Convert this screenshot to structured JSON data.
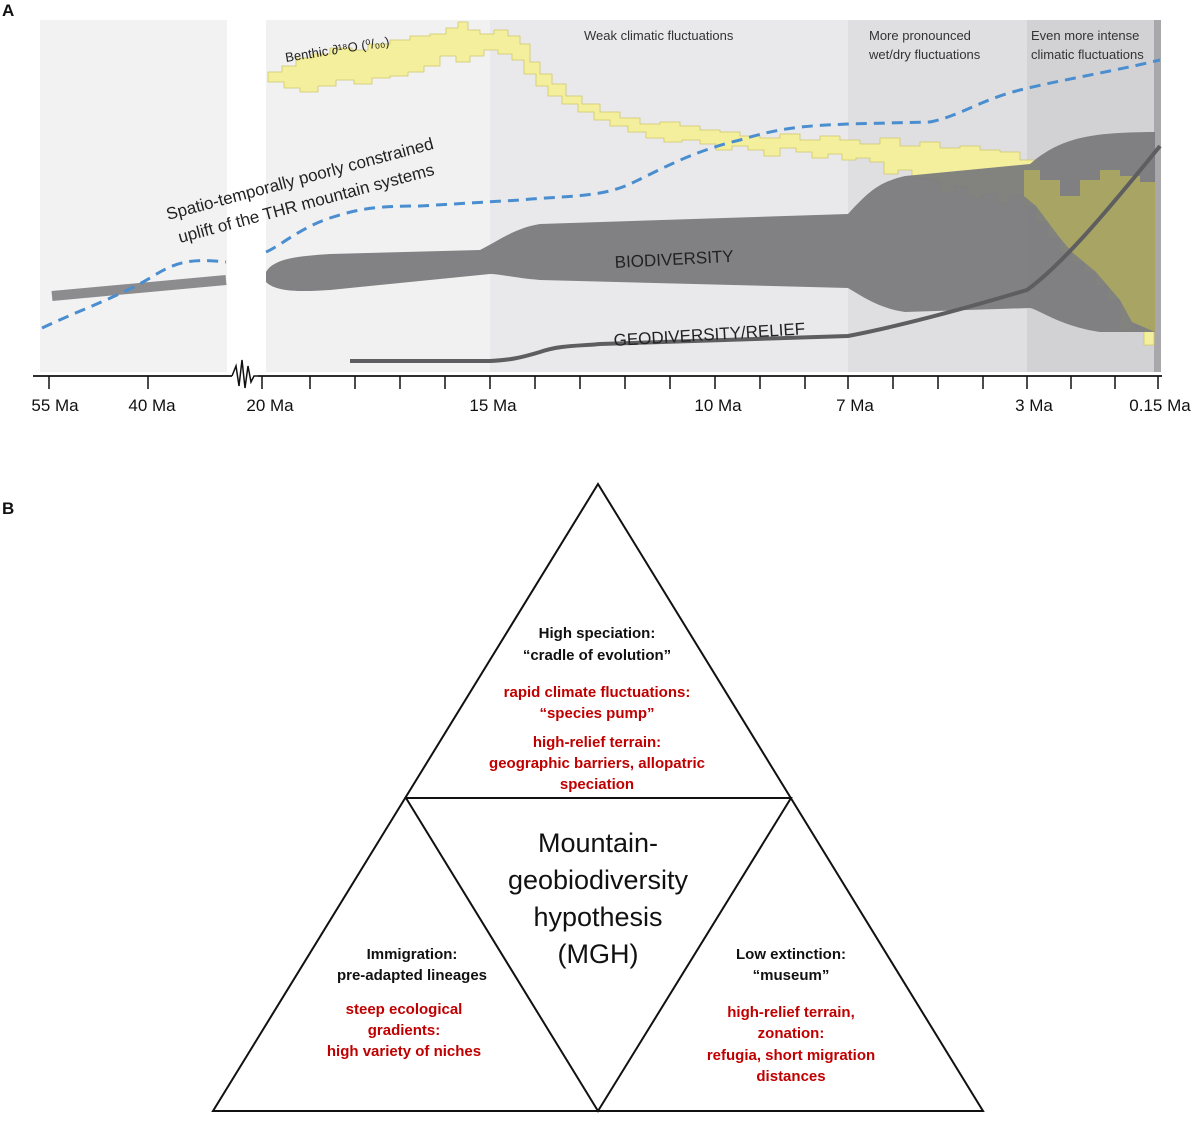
{
  "panel_a": {
    "label": "A",
    "phases": {
      "weak": "Weak climatic fluctuations",
      "pronounced": [
        "More pronounced",
        "wet/dry fluctuations"
      ],
      "intense": [
        "Even more intense",
        "climatic fluctuations"
      ]
    },
    "benthic_label": "Benthic ∂¹⁸O (⁰/₀₀)",
    "uplift_label": [
      "Spatio-temporally poorly constrained",
      "uplift of the THR mountain systems"
    ],
    "biodiversity_label": "BIODIVERSITY",
    "geodiversity_label": "GEODIVERSITY/RELIEF",
    "axis_ticks": [
      "55 Ma",
      "40 Ma",
      "20 Ma",
      "15 Ma",
      "10 Ma",
      "7 Ma",
      "3 Ma",
      "0.15 Ma"
    ],
    "colors": {
      "benthic_fill": "#f4ef9d",
      "benthic_overlap": "#c8c34f",
      "uplift_dash": "#4a8ed0",
      "biodiversity": "#7b7b7d",
      "geodiversity": "#5e5e60"
    }
  },
  "panel_b": {
    "label": "B",
    "top": {
      "title": [
        "High speciation:",
        "“cradle of evolution”"
      ],
      "red": [
        "rapid climate fluctuations:",
        "“species pump”",
        "high-relief terrain:",
        "geographic barriers, allopatric",
        "speciation"
      ]
    },
    "left": {
      "title": [
        "Immigration:",
        "pre-adapted lineages"
      ],
      "red": [
        "steep ecological",
        "gradients:",
        "high variety of niches"
      ]
    },
    "right": {
      "title": [
        "Low extinction:",
        "“museum”"
      ],
      "red": [
        "high-relief terrain,",
        "zonation:",
        "refugia, short migration",
        "distances"
      ]
    },
    "center": [
      "Mountain-",
      "geobiodiversity",
      "hypothesis",
      "(MGH)"
    ]
  }
}
